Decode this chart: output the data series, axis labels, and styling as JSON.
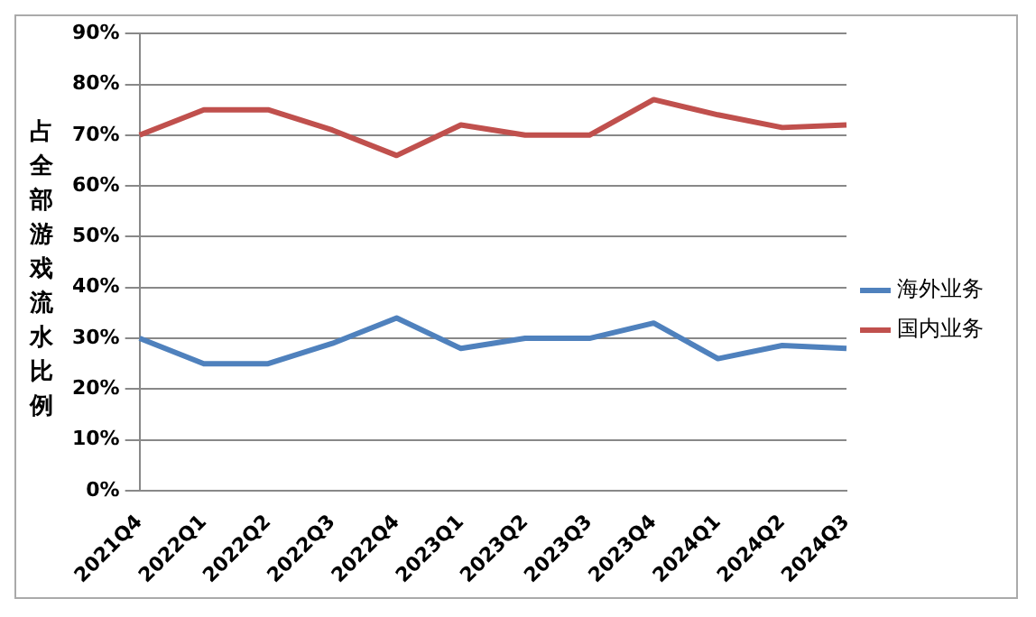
{
  "chart_data": {
    "type": "line",
    "ylabel": "占全部游戏流水比例",
    "categories": [
      "2021Q4",
      "2022Q1",
      "2022Q2",
      "2022Q3",
      "2022Q4",
      "2023Q1",
      "2023Q2",
      "2023Q3",
      "2023Q4",
      "2024Q1",
      "2024Q2",
      "2024Q3"
    ],
    "series": [
      {
        "name": "海外业务",
        "color": "#4f81bd",
        "values": [
          30,
          25,
          25,
          29,
          34,
          28,
          30,
          30,
          33,
          26,
          28.6,
          28
        ]
      },
      {
        "name": "国内业务",
        "color": "#c0504d",
        "values": [
          70,
          75,
          75,
          71,
          66,
          72,
          70,
          70,
          77,
          74,
          71.5,
          72
        ]
      }
    ],
    "ylim": [
      0,
      90
    ],
    "yticks": [
      {
        "value": 0,
        "label": "0%"
      },
      {
        "value": 10,
        "label": "10%"
      },
      {
        "value": 20,
        "label": "20%"
      },
      {
        "value": 30,
        "label": "30%"
      },
      {
        "value": 40,
        "label": "40%"
      },
      {
        "value": 50,
        "label": "50%"
      },
      {
        "value": 60,
        "label": "60%"
      },
      {
        "value": 70,
        "label": "70%"
      },
      {
        "value": 80,
        "label": "80%"
      },
      {
        "value": 90,
        "label": "90%"
      }
    ],
    "grid": "y",
    "legend": "right",
    "marker": "none",
    "line_style": "solid"
  }
}
